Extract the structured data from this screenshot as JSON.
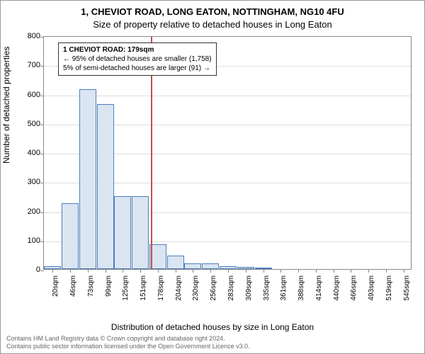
{
  "page_border_color": "#999999",
  "title": {
    "line1": "1, CHEVIOT ROAD, LONG EATON, NOTTINGHAM, NG10 4FU",
    "line2": "Size of property relative to detached houses in Long Eaton",
    "line1_fontsize": 13,
    "line2_fontsize": 13
  },
  "axes": {
    "x_label": "Distribution of detached houses by size in Long Eaton",
    "y_label": "Number of detached properties",
    "label_fontsize": 12,
    "axis_line_color": "#888888",
    "background_color": "#ffffff"
  },
  "yaxis": {
    "min": 0,
    "max": 800,
    "tick_step": 100,
    "ticks": [
      0,
      100,
      200,
      300,
      400,
      500,
      600,
      700,
      800
    ],
    "grid_color": "#dddddd",
    "tick_fontsize": 11
  },
  "xaxis": {
    "labels": [
      "20sqm",
      "46sqm",
      "73sqm",
      "99sqm",
      "125sqm",
      "151sqm",
      "178sqm",
      "204sqm",
      "230sqm",
      "256sqm",
      "283sqm",
      "309sqm",
      "335sqm",
      "361sqm",
      "388sqm",
      "414sqm",
      "440sqm",
      "466sqm",
      "493sqm",
      "519sqm",
      "545sqm"
    ],
    "tick_fontsize": 10
  },
  "bars": {
    "values": [
      10,
      225,
      615,
      565,
      250,
      250,
      85,
      45,
      20,
      20,
      10,
      8,
      5,
      0,
      0,
      0,
      0,
      0,
      0,
      0,
      0
    ],
    "fill_color": "#dbe5f1",
    "border_color": "#4a7ebb",
    "count": 21
  },
  "reference_line": {
    "position_index": 6.1,
    "color": "#c0504d"
  },
  "annotation": {
    "title": "1 CHEVIOT ROAD: 179sqm",
    "line2": "← 95% of detached houses are smaller (1,758)",
    "line3": "5% of semi-detached houses are larger (91) →",
    "border_color": "#333333",
    "background": "#ffffff",
    "fontsize": 10
  },
  "footer": {
    "line1": "Contains HM Land Registry data © Crown copyright and database right 2024.",
    "line2": "Contains public sector information licensed under the Open Government Licence v3.0.",
    "color": "#666666",
    "fontsize": 9
  }
}
